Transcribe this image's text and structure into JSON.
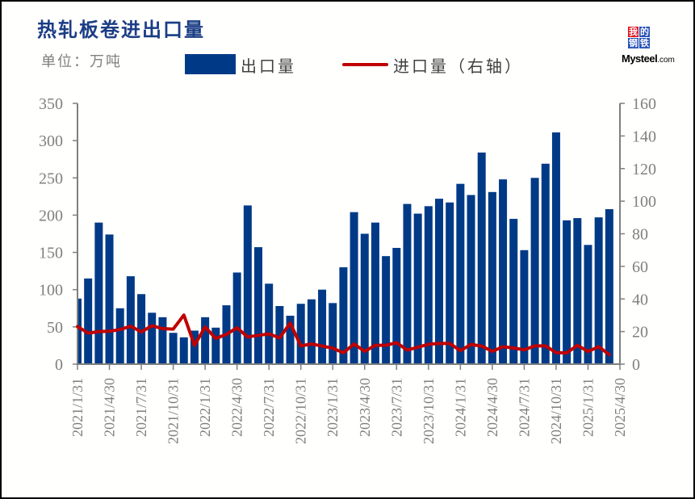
{
  "header": {
    "title": "热轧板卷进出口量",
    "unit": "单位：万吨"
  },
  "legend": {
    "bar_label": "出口量",
    "line_label": "进口量（右轴）"
  },
  "logo": {
    "chars": [
      "我",
      "的",
      "钢",
      "铁"
    ],
    "brand": "Mysteel",
    "domain": ".com"
  },
  "colors": {
    "title": "#1b3d86",
    "bar": "#003a87",
    "line": "#c00000",
    "axis": "#7f7f7f",
    "legend_text": "#404040"
  },
  "chart_data": {
    "type": "bar",
    "title": "热轧板卷进出口量",
    "xlabel": "",
    "ylabel": "单位：万吨",
    "grid": false,
    "legend": "top",
    "xlim": [
      "2021/1/31",
      "2025/4/30"
    ],
    "x_tick_labels": [
      "2021/1/31",
      "2021/4/30",
      "2021/7/31",
      "2021/10/31",
      "2022/1/31",
      "2022/4/30",
      "2022/7/31",
      "2022/10/31",
      "2023/1/31",
      "2023/4/30",
      "2023/7/31",
      "2023/10/31",
      "2024/1/31",
      "2024/4/30",
      "2024/7/31",
      "2024/10/31",
      "2025/1/31",
      "2025/4/30"
    ],
    "x": [
      "2021/1/31",
      "2021/2/28",
      "2021/3/31",
      "2021/4/30",
      "2021/5/31",
      "2021/6/30",
      "2021/7/31",
      "2021/8/31",
      "2021/9/30",
      "2021/10/31",
      "2021/11/30",
      "2021/12/31",
      "2022/1/31",
      "2022/2/28",
      "2022/3/31",
      "2022/4/30",
      "2022/5/31",
      "2022/6/30",
      "2022/7/31",
      "2022/8/31",
      "2022/9/30",
      "2022/10/31",
      "2022/11/30",
      "2022/12/31",
      "2023/1/31",
      "2023/2/28",
      "2023/3/31",
      "2023/4/30",
      "2023/5/31",
      "2023/6/30",
      "2023/7/31",
      "2023/8/31",
      "2023/9/30",
      "2023/10/31",
      "2023/11/30",
      "2023/12/31",
      "2024/1/31",
      "2024/2/29",
      "2024/3/31",
      "2024/4/30",
      "2024/5/31",
      "2024/6/30",
      "2024/7/31",
      "2024/8/31",
      "2024/9/30",
      "2024/10/31",
      "2024/11/30",
      "2024/12/31",
      "2025/1/31",
      "2025/2/28",
      "2025/3/31"
    ],
    "y_left": {
      "lim": [
        0,
        350
      ],
      "ticks": [
        0,
        50,
        100,
        150,
        200,
        250,
        300,
        350
      ]
    },
    "y_right": {
      "lim": [
        0,
        160
      ],
      "ticks": [
        0,
        20,
        40,
        60,
        80,
        100,
        120,
        140,
        160
      ]
    },
    "series": [
      {
        "name": "出口量",
        "type": "bar",
        "axis": "left",
        "values": [
          88,
          115,
          190,
          174,
          75,
          118,
          94,
          69,
          63,
          42,
          36,
          45,
          63,
          49,
          79,
          123,
          213,
          157,
          108,
          78,
          65,
          81,
          87,
          100,
          82,
          130,
          204,
          175,
          190,
          145,
          156,
          215,
          202,
          212,
          222,
          217,
          242,
          227,
          284,
          231,
          248,
          195,
          153,
          250,
          269,
          311,
          193,
          196,
          160,
          197,
          208
        ]
      },
      {
        "name": "进口量（右轴）",
        "type": "line",
        "axis": "right",
        "values": [
          23.1,
          19.0,
          20.0,
          20.2,
          21.2,
          23.3,
          19.8,
          23.6,
          21.8,
          21.5,
          30.1,
          11.6,
          22.8,
          15.8,
          18.3,
          22.3,
          16.7,
          17.7,
          18.6,
          16.1,
          25.2,
          11.2,
          12.4,
          11.1,
          9.8,
          7.0,
          12.4,
          7.9,
          11.6,
          11.6,
          13.2,
          8.6,
          10.4,
          12.2,
          12.7,
          12.7,
          8.3,
          12.1,
          11.1,
          7.9,
          10.7,
          9.9,
          8.8,
          11.2,
          11.2,
          7.1,
          6.9,
          11.6,
          7.8,
          10.7,
          5.9
        ]
      }
    ]
  }
}
